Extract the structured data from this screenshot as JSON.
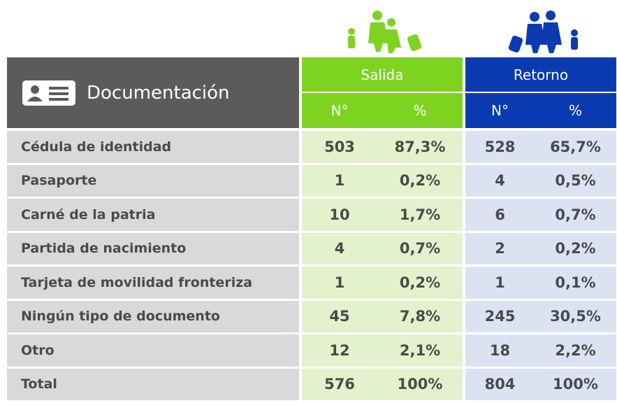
{
  "table": {
    "header": {
      "title": "Documentación",
      "groups": [
        "Salida",
        "Retorno"
      ],
      "subheaders": [
        "N°",
        "%",
        "N°",
        "%"
      ]
    },
    "rows": [
      [
        "Cédula de identidad",
        "503",
        "87,3%",
        "528",
        "65,7%"
      ],
      [
        "Pasaporte",
        "1",
        "0,2%",
        "4",
        "0,5%"
      ],
      [
        "Carné de la patria",
        "10",
        "1,7%",
        "6",
        "0,7%"
      ],
      [
        "Partida de nacimiento",
        "4",
        "0,7%",
        "2",
        "0,2%"
      ],
      [
        "Tarjeta de movilidad fronteriza",
        "1",
        "0,2%",
        "1",
        "0,1%"
      ],
      [
        "Ningún tipo de documento",
        "45",
        "7,8%",
        "245",
        "30,5%"
      ],
      [
        "Otro",
        "12",
        "2,1%",
        "18",
        "2,2%"
      ],
      [
        "Total",
        "576",
        "100%",
        "804",
        "100%"
      ]
    ]
  }
}
